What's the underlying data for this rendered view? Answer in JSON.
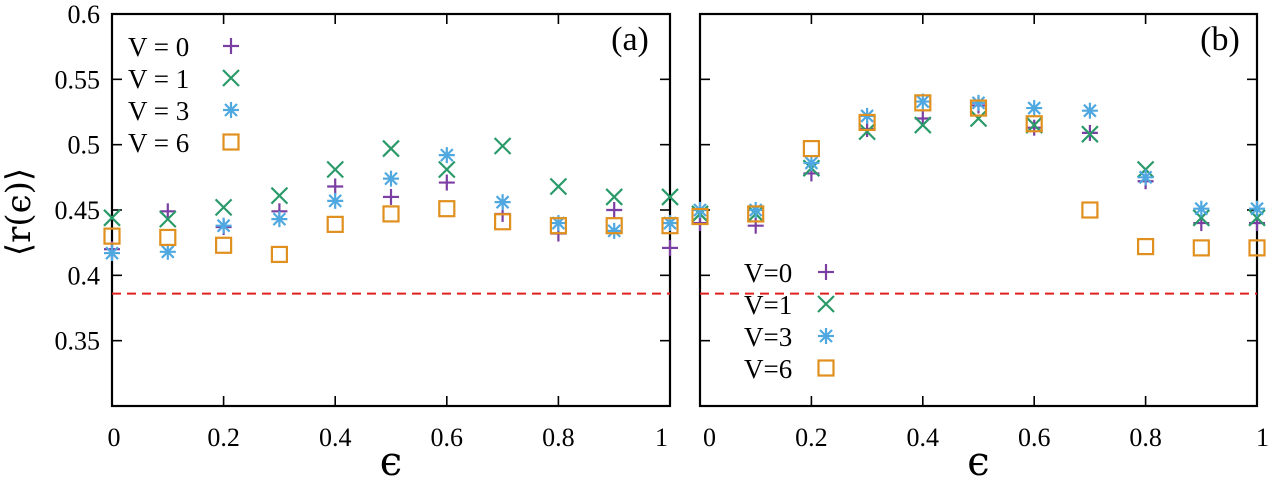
{
  "colors": {
    "V0": "#7b3fa3",
    "V1": "#2a9a6a",
    "V3": "#4fa8e0",
    "V6": "#e0901e",
    "reference_line": "#e0201e"
  },
  "markers": {
    "V0": "plus",
    "V1": "cross",
    "V3": "star",
    "V6": "square"
  },
  "chart_data": [
    {
      "type": "scatter",
      "panel_label": "(a)",
      "xlabel": "ϵ",
      "ylabel": "⟨r(ϵ)⟩",
      "xlim": [
        0,
        1
      ],
      "ylim": [
        0.3,
        0.6
      ],
      "xticks": [
        "0",
        "0.2",
        "0.4",
        "0.6",
        "0.8",
        "1"
      ],
      "yticks": [
        "0.35",
        "0.4",
        "0.45",
        "0.5",
        "0.55",
        "0.6"
      ],
      "legend_position": "top-left",
      "reference_line": 0.386,
      "x": [
        0,
        0.1,
        0.2,
        0.3,
        0.4,
        0.5,
        0.6,
        0.7,
        0.8,
        0.9,
        1.0
      ],
      "series": [
        {
          "name": "V = 0",
          "key": "V0",
          "values": [
            0.42,
            0.449,
            0.437,
            0.449,
            0.468,
            0.46,
            0.471,
            0.447,
            0.432,
            0.45,
            0.421
          ]
        },
        {
          "name": "V = 1",
          "key": "V1",
          "values": [
            0.444,
            0.443,
            0.452,
            0.461,
            0.481,
            0.497,
            0.481,
            0.499,
            0.468,
            0.46,
            0.46
          ]
        },
        {
          "name": "V = 3",
          "key": "V3",
          "values": [
            0.417,
            0.418,
            0.438,
            0.443,
            0.457,
            0.474,
            0.492,
            0.456,
            0.44,
            0.434,
            0.44
          ]
        },
        {
          "name": "V = 6",
          "key": "V6",
          "values": [
            0.43,
            0.429,
            0.423,
            0.416,
            0.439,
            0.447,
            0.451,
            0.441,
            0.438,
            0.438,
            0.438
          ]
        }
      ]
    },
    {
      "type": "scatter",
      "panel_label": "(b)",
      "xlabel": "ϵ",
      "ylabel": "",
      "xlim": [
        0,
        1
      ],
      "ylim": [
        0.3,
        0.6
      ],
      "xticks": [
        "0",
        "0.2",
        "0.4",
        "0.6",
        "0.8",
        "1"
      ],
      "yticks": [],
      "legend_position": "bottom-left",
      "reference_line": 0.386,
      "x": [
        0,
        0.1,
        0.2,
        0.3,
        0.4,
        0.5,
        0.6,
        0.7,
        0.8,
        0.9,
        1.0
      ],
      "series": [
        {
          "name": "V=0",
          "key": "V0",
          "values": [
            0.44,
            0.438,
            0.478,
            0.512,
            0.52,
            0.53,
            0.513,
            0.509,
            0.472,
            0.44,
            0.44
          ]
        },
        {
          "name": "V=1",
          "key": "V1",
          "values": [
            0.447,
            0.447,
            0.482,
            0.51,
            0.515,
            0.52,
            0.515,
            0.508,
            0.481,
            0.444,
            0.444
          ]
        },
        {
          "name": "V=3",
          "key": "V3",
          "values": [
            0.45,
            0.45,
            0.486,
            0.522,
            0.533,
            0.532,
            0.528,
            0.526,
            0.475,
            0.451,
            0.451
          ]
        },
        {
          "name": "V=6",
          "key": "V6",
          "values": [
            0.445,
            0.447,
            0.497,
            0.517,
            0.532,
            0.528,
            0.516,
            0.45,
            0.422,
            0.421,
            0.421
          ]
        }
      ]
    }
  ]
}
